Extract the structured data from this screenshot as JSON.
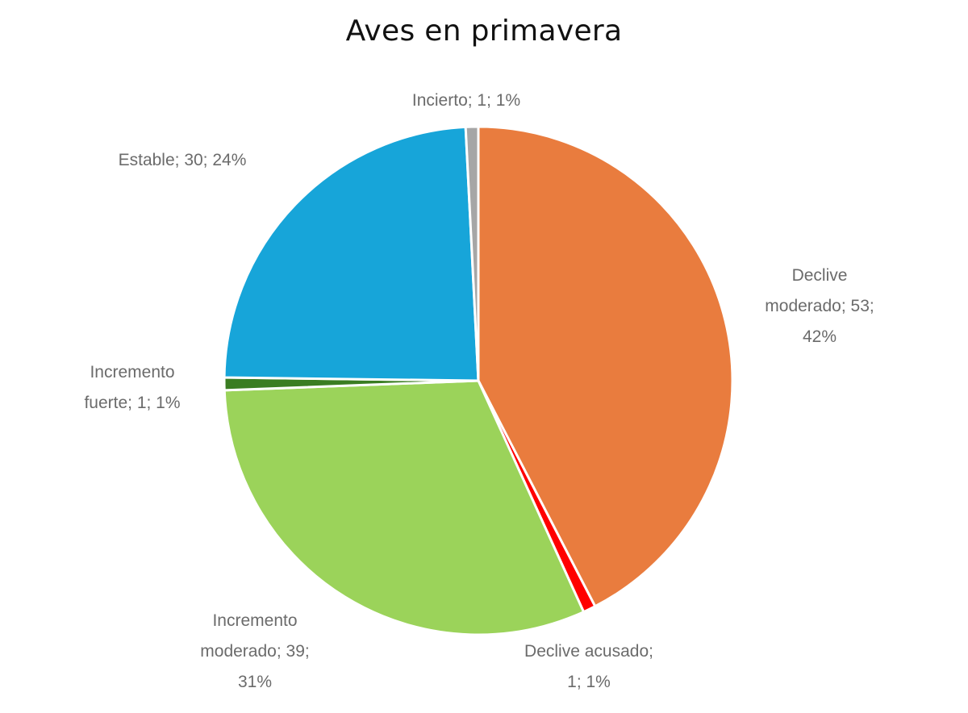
{
  "chart_data": {
    "type": "pie",
    "title": "Aves en primavera",
    "start_angle_deg": 0,
    "direction": "clockwise",
    "total": 125,
    "slices": [
      {
        "label": "Declive moderado",
        "value": 53,
        "percent": "42%",
        "color": "#E97C3E"
      },
      {
        "label": "Declive acusado",
        "value": 1,
        "percent": "1%",
        "color": "#FF0000"
      },
      {
        "label": "Incremento moderado",
        "value": 39,
        "percent": "31%",
        "color": "#9BD35A"
      },
      {
        "label": "Incremento fuerte",
        "value": 1,
        "percent": "1%",
        "color": "#3A7D22"
      },
      {
        "label": "Estable",
        "value": 30,
        "percent": "24%",
        "color": "#17A5D9"
      },
      {
        "label": "Incierto",
        "value": 1,
        "percent": "1%",
        "color": "#A6A6A6"
      }
    ],
    "data_labels_format": "Category; Value; Percent"
  },
  "labels": {
    "declive_moderado": [
      "Declive",
      "moderado; 53;",
      "42%"
    ],
    "declive_acusado": [
      "Declive acusado;",
      "1; 1%"
    ],
    "incremento_moderado": [
      "Incremento",
      "moderado; 39;",
      "31%"
    ],
    "incremento_fuerte": [
      "Incremento",
      "fuerte; 1; 1%"
    ],
    "estable": [
      "Estable; 30; 24%"
    ],
    "incierto": [
      "Incierto; 1; 1%"
    ]
  }
}
